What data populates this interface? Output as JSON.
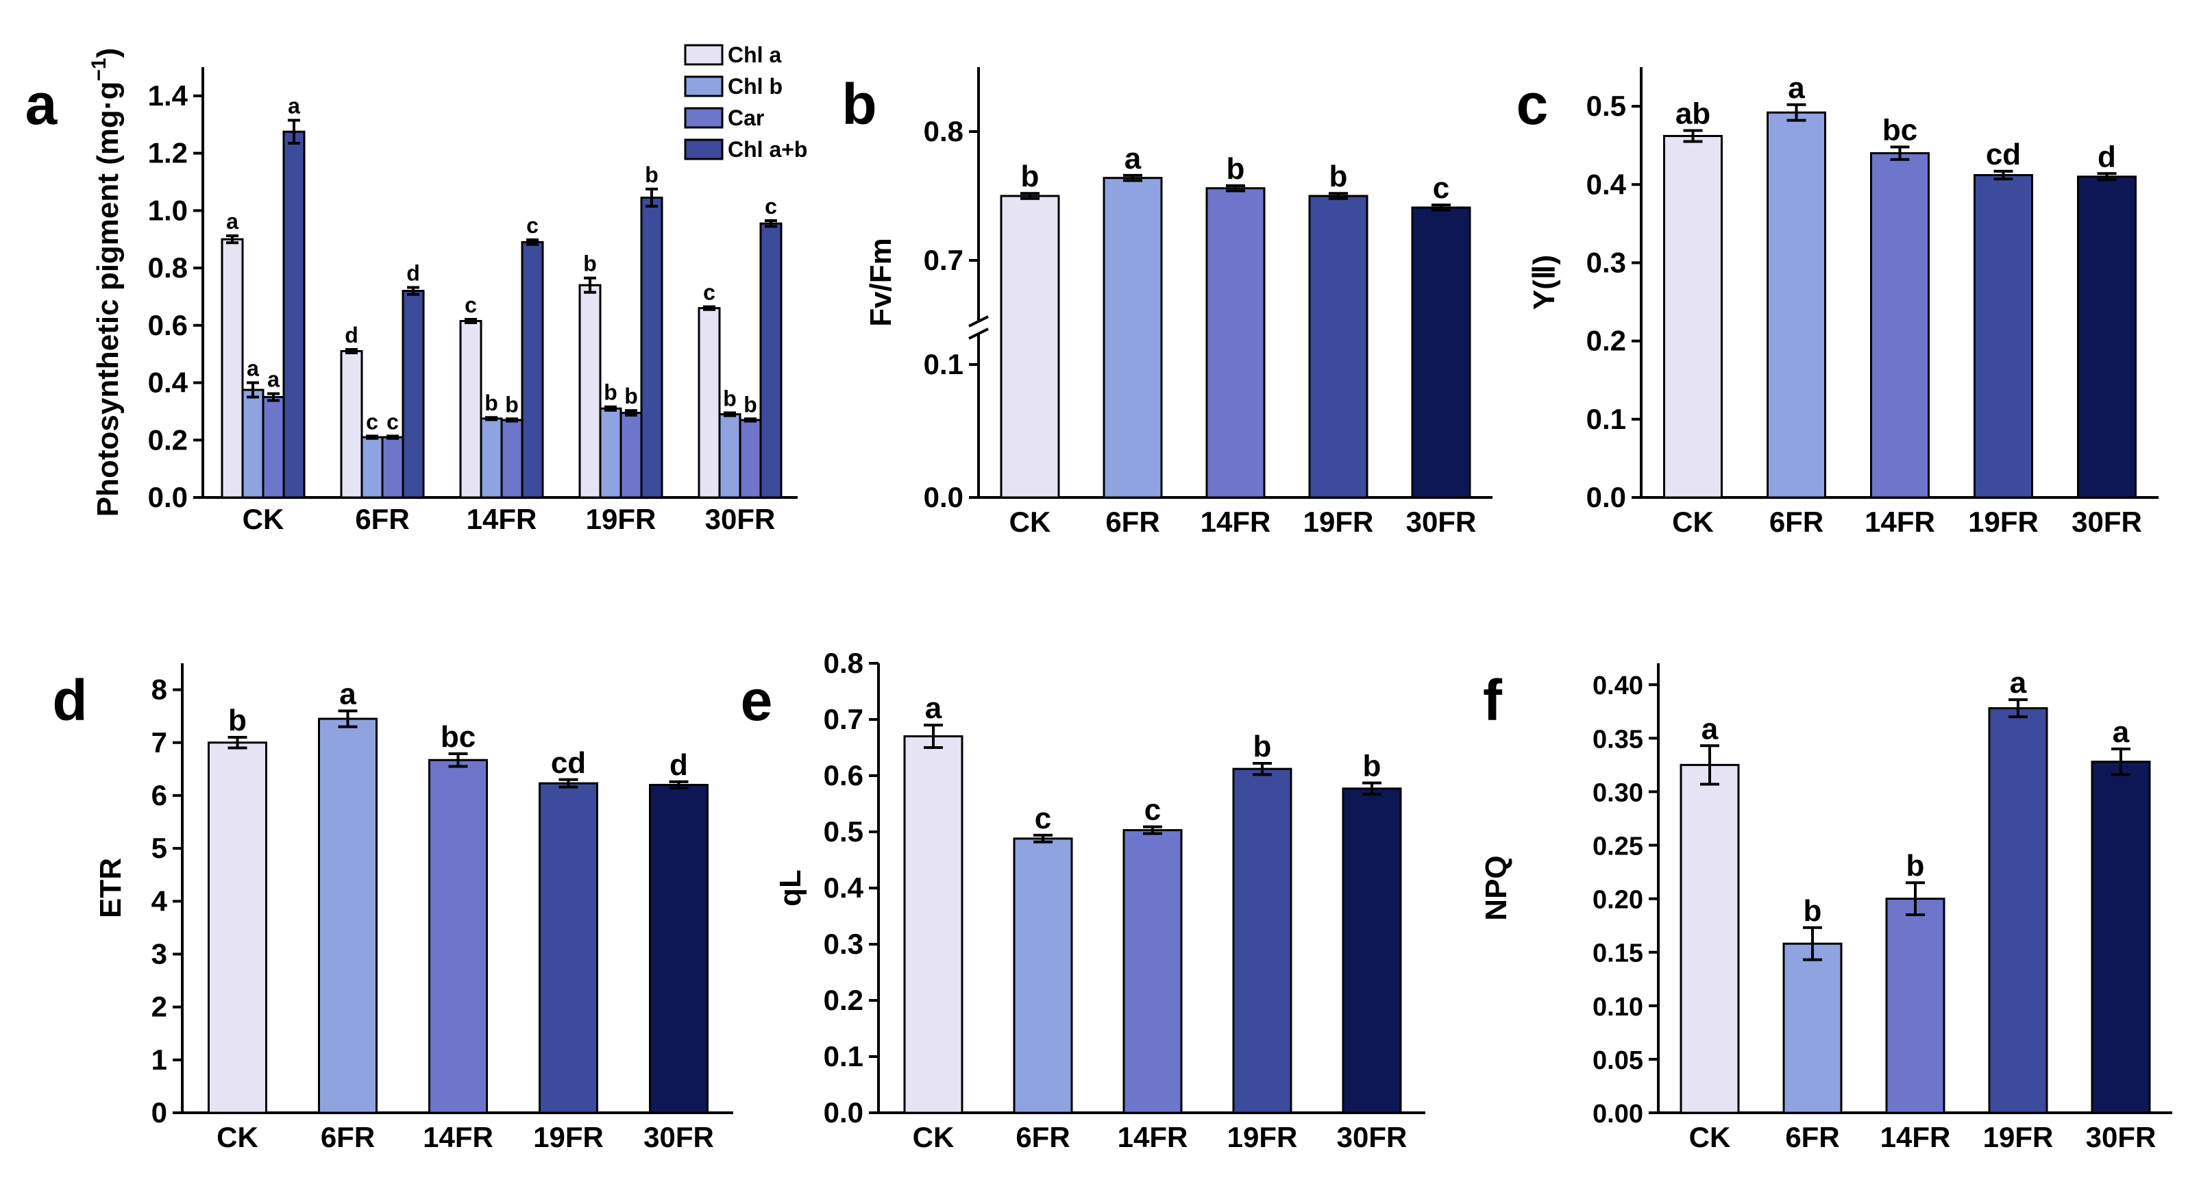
{
  "chart_data": [
    {
      "id": "a",
      "panel": "a",
      "type": "bar",
      "ylabel": "Photosynthetic pigment (mg·g",
      "ylabel_sup": "−1",
      "ylabel_close": ")",
      "categories": [
        "CK",
        "6FR",
        "14FR",
        "19FR",
        "30FR"
      ],
      "ylim": [
        0,
        1.5
      ],
      "yticks": [
        0.0,
        0.2,
        0.4,
        0.6,
        0.8,
        1.0,
        1.2,
        1.4
      ],
      "ytick_labels": [
        "0.0",
        "0.2",
        "0.4",
        "0.6",
        "0.8",
        "1.0",
        "1.2",
        "1.4"
      ],
      "legend_position": "top-right",
      "series": [
        {
          "name": "Chl a",
          "color": "#E6E3F4",
          "values": [
            0.9,
            0.51,
            0.615,
            0.74,
            0.66
          ],
          "errors": [
            0.012,
            0.006,
            0.006,
            0.025,
            0.005
          ],
          "labels": [
            "a",
            "d",
            "c",
            "b",
            "c"
          ]
        },
        {
          "name": "Chl b",
          "color": "#8EA3E0",
          "values": [
            0.375,
            0.21,
            0.275,
            0.31,
            0.29
          ],
          "errors": [
            0.025,
            0.004,
            0.004,
            0.006,
            0.005
          ],
          "labels": [
            "a",
            "c",
            "b",
            "b",
            "b"
          ]
        },
        {
          "name": "Car",
          "color": "#6D76CB",
          "values": [
            0.35,
            0.21,
            0.27,
            0.295,
            0.27
          ],
          "errors": [
            0.012,
            0.004,
            0.004,
            0.008,
            0.004
          ],
          "labels": [
            "a",
            "c",
            "b",
            "b",
            "b"
          ]
        },
        {
          "name": "Chl a+b",
          "color": "#3C4B9C",
          "values": [
            1.275,
            0.72,
            0.89,
            1.045,
            0.955
          ],
          "errors": [
            0.04,
            0.012,
            0.008,
            0.03,
            0.01
          ],
          "labels": [
            "a",
            "d",
            "c",
            "b",
            "c"
          ]
        }
      ]
    },
    {
      "id": "b",
      "panel": "b",
      "type": "bar",
      "ylabel": "Fv/Fm",
      "categories": [
        "CK",
        "6FR",
        "14FR",
        "19FR",
        "30FR"
      ],
      "axis_break": true,
      "ylim": [
        0,
        0.85
      ],
      "yticks": [
        0.0,
        0.1,
        0.7,
        0.8
      ],
      "ytick_labels": [
        "0.0",
        "0.1",
        "0.7",
        "0.8"
      ],
      "values": [
        0.75,
        0.764,
        0.756,
        0.75,
        0.741
      ],
      "errors": [
        0.002,
        0.002,
        0.002,
        0.002,
        0.002
      ],
      "labels": [
        "b",
        "a",
        "b",
        "b",
        "c"
      ],
      "colors": [
        "#E6E3F4",
        "#8EA3E0",
        "#6D76CB",
        "#3C4B9C",
        "#0E1756"
      ]
    },
    {
      "id": "c",
      "panel": "c",
      "type": "bar",
      "ylabel": "Y(Ⅱ)",
      "categories": [
        "CK",
        "6FR",
        "14FR",
        "19FR",
        "30FR"
      ],
      "ylim": [
        0,
        0.55
      ],
      "yticks": [
        0.0,
        0.1,
        0.2,
        0.3,
        0.4,
        0.5
      ],
      "ytick_labels": [
        "0.0",
        "0.1",
        "0.2",
        "0.3",
        "0.4",
        "0.5"
      ],
      "values": [
        0.462,
        0.492,
        0.44,
        0.412,
        0.41
      ],
      "errors": [
        0.007,
        0.01,
        0.008,
        0.005,
        0.004
      ],
      "labels": [
        "ab",
        "a",
        "bc",
        "cd",
        "d"
      ],
      "colors": [
        "#E6E3F4",
        "#8EA3E0",
        "#6D76CB",
        "#3C4B9C",
        "#0E1756"
      ]
    },
    {
      "id": "d",
      "panel": "d",
      "type": "bar",
      "ylabel": "ETR",
      "categories": [
        "CK",
        "6FR",
        "14FR",
        "19FR",
        "30FR"
      ],
      "ylim": [
        0,
        8.5
      ],
      "yticks": [
        0,
        1,
        2,
        3,
        4,
        5,
        6,
        7,
        8
      ],
      "ytick_labels": [
        "0",
        "1",
        "2",
        "3",
        "4",
        "5",
        "6",
        "7",
        "8"
      ],
      "values": [
        7.0,
        7.45,
        6.67,
        6.23,
        6.2
      ],
      "errors": [
        0.1,
        0.15,
        0.12,
        0.07,
        0.06
      ],
      "labels": [
        "b",
        "a",
        "bc",
        "cd",
        "d"
      ],
      "colors": [
        "#E6E3F4",
        "#8EA3E0",
        "#6D76CB",
        "#3C4B9C",
        "#0E1756"
      ]
    },
    {
      "id": "e",
      "panel": "e",
      "type": "bar",
      "ylabel": "qL",
      "categories": [
        "CK",
        "6FR",
        "14FR",
        "19FR",
        "30FR"
      ],
      "ylim": [
        0,
        0.8
      ],
      "yticks": [
        0.0,
        0.1,
        0.2,
        0.3,
        0.4,
        0.5,
        0.6,
        0.7,
        0.8
      ],
      "ytick_labels": [
        "0.0",
        "0.1",
        "0.2",
        "0.3",
        "0.4",
        "0.5",
        "0.6",
        "0.7",
        "0.8"
      ],
      "values": [
        0.67,
        0.488,
        0.503,
        0.612,
        0.577
      ],
      "errors": [
        0.02,
        0.006,
        0.006,
        0.01,
        0.01
      ],
      "labels": [
        "a",
        "c",
        "c",
        "b",
        "b"
      ],
      "colors": [
        "#E6E3F4",
        "#8EA3E0",
        "#6D76CB",
        "#3C4B9C",
        "#0E1756"
      ]
    },
    {
      "id": "f",
      "panel": "f",
      "type": "bar",
      "ylabel": "NPQ",
      "categories": [
        "CK",
        "6FR",
        "14FR",
        "19FR",
        "30FR"
      ],
      "ylim": [
        0,
        0.42
      ],
      "yticks": [
        0.0,
        0.05,
        0.1,
        0.15,
        0.2,
        0.25,
        0.3,
        0.35,
        0.4
      ],
      "ytick_labels": [
        "0.00",
        "0.05",
        "0.10",
        "0.15",
        "0.20",
        "0.25",
        "0.30",
        "0.35",
        "0.40"
      ],
      "values": [
        0.325,
        0.158,
        0.2,
        0.378,
        0.328
      ],
      "errors": [
        0.018,
        0.015,
        0.015,
        0.008,
        0.012
      ],
      "labels": [
        "a",
        "b",
        "b",
        "a",
        "a"
      ],
      "colors": [
        "#E6E3F4",
        "#8EA3E0",
        "#6D76CB",
        "#3C4B9C",
        "#0E1756"
      ]
    }
  ]
}
